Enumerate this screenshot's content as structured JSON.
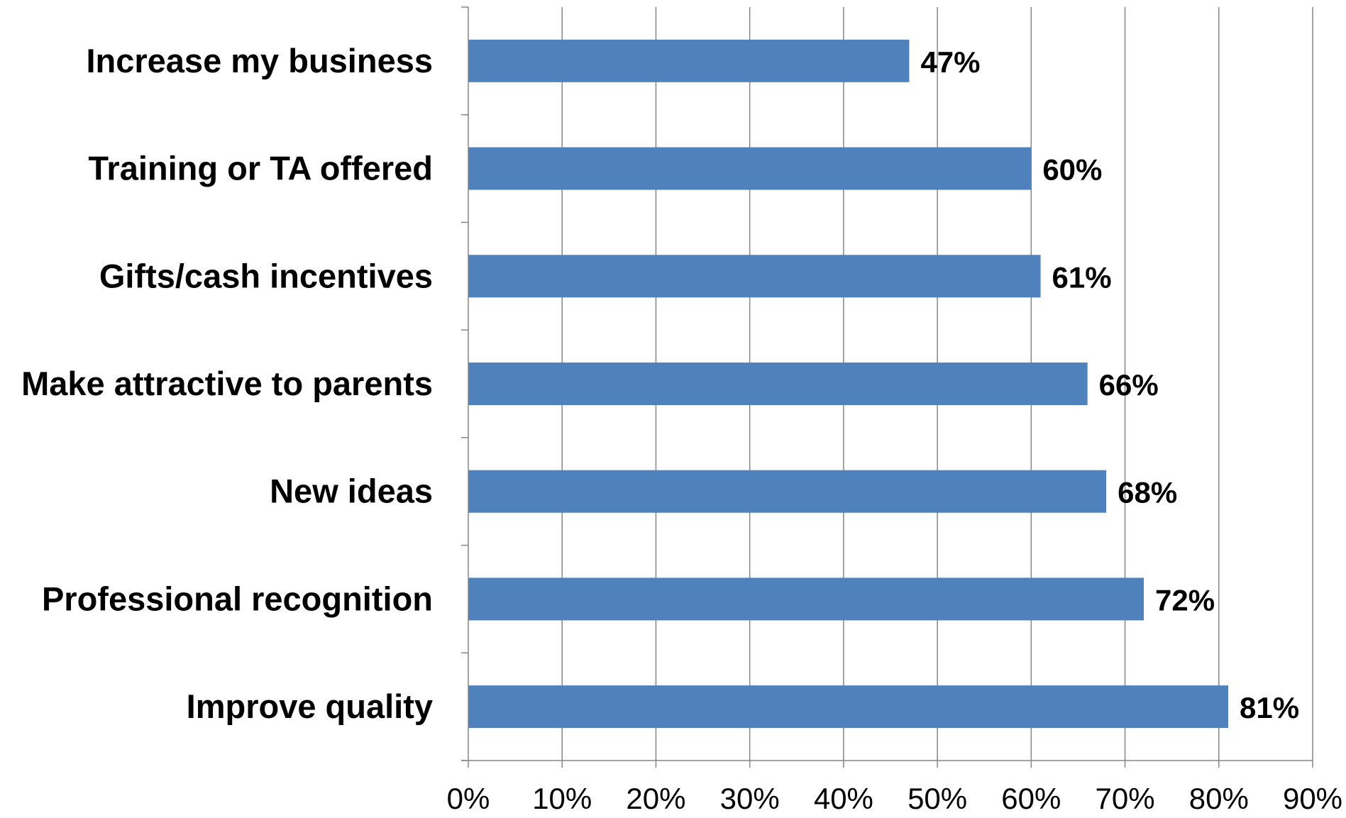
{
  "chart_data": {
    "type": "bar",
    "orientation": "horizontal",
    "categories": [
      "Increase my business",
      "Training or TA offered",
      "Gifts/cash incentives",
      "Make attractive to parents",
      "New ideas",
      "Professional recognition",
      "Improve quality"
    ],
    "values": [
      47,
      60,
      61,
      66,
      68,
      72,
      81
    ],
    "value_labels": [
      "47%",
      "60%",
      "61%",
      "66%",
      "68%",
      "72%",
      "81%"
    ],
    "x_ticks": [
      "0%",
      "10%",
      "20%",
      "30%",
      "40%",
      "50%",
      "60%",
      "70%",
      "80%",
      "90%"
    ],
    "xlim": [
      0,
      90
    ],
    "title": "",
    "xlabel": "",
    "ylabel": "",
    "grid": "vertical",
    "legend": "none",
    "colors": {
      "bar": "#4F81BD",
      "grid": "#868686",
      "axis": "#868686",
      "text": "#000000"
    }
  }
}
